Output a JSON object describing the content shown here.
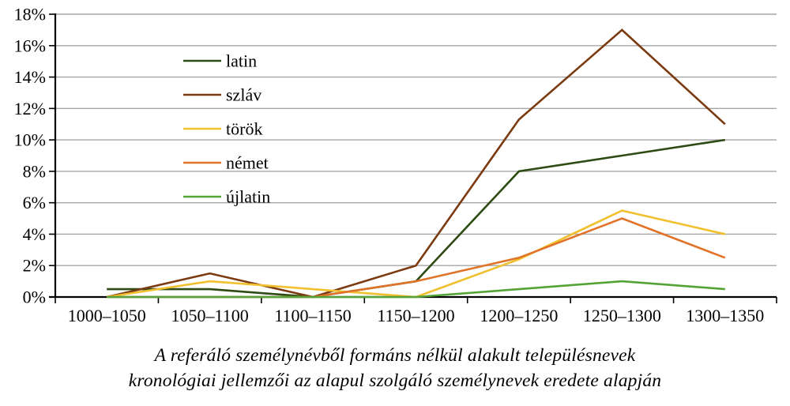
{
  "chart_data": {
    "type": "line",
    "title": "",
    "xlabel": "",
    "ylabel": "",
    "categories": [
      "1000–1050",
      "1050–1100",
      "1100–1150",
      "1150–1200",
      "1200–1250",
      "1250–1300",
      "1300–1350"
    ],
    "series": [
      {
        "name": "latin",
        "color": "#2e4b13",
        "values": [
          0.5,
          0.5,
          0,
          1,
          8,
          9,
          10
        ]
      },
      {
        "name": "szláv",
        "color": "#7b3a10",
        "values": [
          0,
          1.5,
          0,
          2,
          11.3,
          17,
          11
        ]
      },
      {
        "name": "török",
        "color": "#f0c02f",
        "values": [
          0,
          1,
          0.5,
          0,
          2.4,
          5.5,
          4
        ]
      },
      {
        "name": "német",
        "color": "#e07328",
        "values": [
          0,
          0,
          0,
          1,
          2.5,
          5,
          2.5
        ]
      },
      {
        "name": "újlatin",
        "color": "#55a337",
        "values": [
          0,
          0,
          0,
          0,
          0.5,
          1,
          0.5
        ]
      }
    ],
    "yticks": [
      "18%",
      "16%",
      "14%",
      "12%",
      "10%",
      "8%",
      "6%",
      "4%",
      "2%",
      "0%"
    ],
    "ylim": [
      0,
      18
    ],
    "ytick_step": 2,
    "grid": true,
    "legend_position": "inside-top-left"
  },
  "caption": {
    "line1": "A referáló személynévből formáns nélkül alakult településnevek",
    "line2": "kronológiai jellemzői az alapul szolgáló személynevek eredete alapján"
  },
  "colors": {
    "grid": "#a6a6a6",
    "axis": "#000000",
    "text": "#000000",
    "background": "#ffffff"
  }
}
